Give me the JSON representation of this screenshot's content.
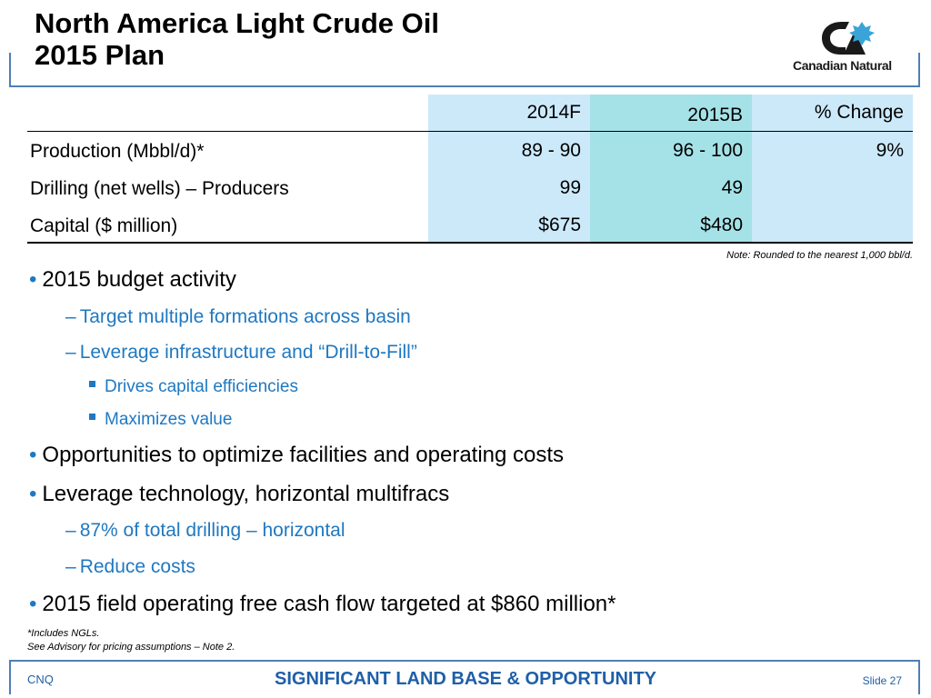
{
  "title": {
    "line1": "North America Light Crude Oil",
    "line2": "2015 Plan"
  },
  "logo": {
    "text": "Canadian Natural",
    "icon": "canadian-natural-logo-icon"
  },
  "table": {
    "columns": [
      "2014F",
      "2015B",
      "% Change"
    ],
    "rows": [
      {
        "label": "Production (Mbbl/d)*",
        "values": [
          "89 - 90",
          "96 - 100",
          "9%"
        ]
      },
      {
        "label": "Drilling (net wells) – Producers",
        "values": [
          "99",
          "49",
          ""
        ]
      },
      {
        "label": "Capital ($ million)",
        "values": [
          "$675",
          "$480",
          ""
        ]
      }
    ],
    "note": "Note: Rounded to the nearest 1,000 bbl/d."
  },
  "bullets": {
    "b1": "2015 budget activity",
    "b1_1": "Target multiple formations across basin",
    "b1_2": "Leverage infrastructure and “Drill-to-Fill”",
    "b1_2_1": "Drives capital efficiencies",
    "b1_2_2": "Maximizes value",
    "b2": "Opportunities to optimize facilities and operating costs",
    "b3": "Leverage technology, horizontal multifracs",
    "b3_1": "87% of total drilling – horizontal",
    "b3_2": "Reduce costs",
    "b4": "2015 field operating free cash flow targeted at $860 million*"
  },
  "footnotes": {
    "line1": "*Includes NGLs.",
    "line2": "See Advisory for pricing assumptions – Note 2."
  },
  "footer": {
    "left": "CNQ",
    "center": "SIGNIFICANT LAND BASE & OPPORTUNITY",
    "right": "Slide 27"
  },
  "colors": {
    "accent_blue": "#1f78c1",
    "footer_blue": "#1f5fa8",
    "bracket": "#4f7fb5",
    "col_light": "#cce9fa",
    "col_teal": "#a5e2e8"
  }
}
